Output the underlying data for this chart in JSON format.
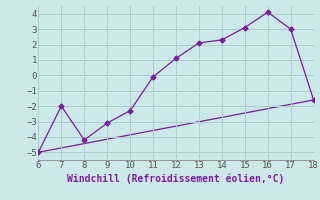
{
  "xlabel": "Windchill (Refroidissement éolien,°C)",
  "line1_x": [
    6,
    7,
    8,
    9,
    10,
    11,
    12,
    13,
    14,
    15,
    16,
    17,
    18
  ],
  "line1_y": [
    -5.0,
    -2.0,
    -4.2,
    -3.1,
    -2.3,
    -0.1,
    1.1,
    2.1,
    2.3,
    3.1,
    4.1,
    3.0,
    -1.6
  ],
  "line2_x": [
    6,
    18
  ],
  "line2_y": [
    -5.0,
    -1.6
  ],
  "line_color": "#7b1fa2",
  "bg_color": "#cce8e8",
  "grid_color": "#aacfcf",
  "xlim": [
    6,
    18
  ],
  "ylim": [
    -5.5,
    4.5
  ],
  "xticks": [
    6,
    7,
    8,
    9,
    10,
    11,
    12,
    13,
    14,
    15,
    16,
    17,
    18
  ],
  "yticks": [
    -5,
    -4,
    -3,
    -2,
    -1,
    0,
    1,
    2,
    3,
    4
  ],
  "tick_fontsize": 6.5,
  "xlabel_fontsize": 7,
  "marker": "D",
  "marker_size": 2.5,
  "linewidth": 0.9
}
